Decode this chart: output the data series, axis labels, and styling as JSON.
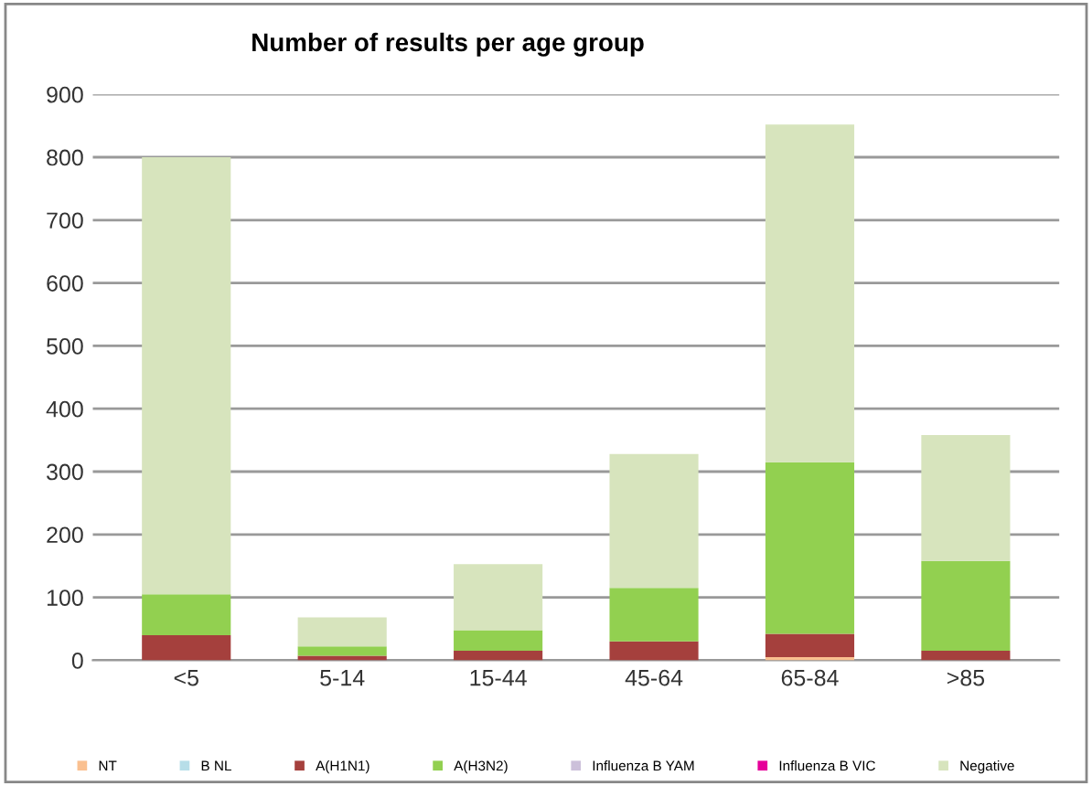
{
  "chart_data": {
    "type": "bar",
    "title": "Number of results per age group",
    "stacked": true,
    "categories": [
      "<5",
      "5-14",
      "15-44",
      "45-64",
      "65-84",
      ">85"
    ],
    "series": [
      {
        "name": "NT",
        "color": "#fac090",
        "values": [
          0,
          0,
          0,
          0,
          5,
          0
        ]
      },
      {
        "name": "B NL",
        "color": "#b7dee8",
        "values": [
          0,
          0,
          0,
          0,
          0,
          0
        ]
      },
      {
        "name": "A(H1N1)",
        "color": "#a5403d",
        "values": [
          40,
          7,
          15,
          30,
          37,
          15
        ]
      },
      {
        "name": "A(H3N2)",
        "color": "#92d050",
        "values": [
          65,
          15,
          33,
          85,
          273,
          143
        ]
      },
      {
        "name": "Influenza B YAM",
        "color": "#ccc0da",
        "values": [
          0,
          0,
          0,
          0,
          0,
          0
        ]
      },
      {
        "name": "Influenza B VIC",
        "color": "#e6009a",
        "values": [
          0,
          0,
          0,
          0,
          0,
          0
        ]
      },
      {
        "name": "Negative",
        "color": "#d7e4bd",
        "values": [
          695,
          46,
          105,
          213,
          537,
          200
        ]
      }
    ],
    "ylim": [
      0,
      900
    ],
    "yticks": [
      0,
      100,
      200,
      300,
      400,
      500,
      600,
      700,
      800,
      900
    ],
    "grid": "y",
    "legend": "bottom"
  }
}
